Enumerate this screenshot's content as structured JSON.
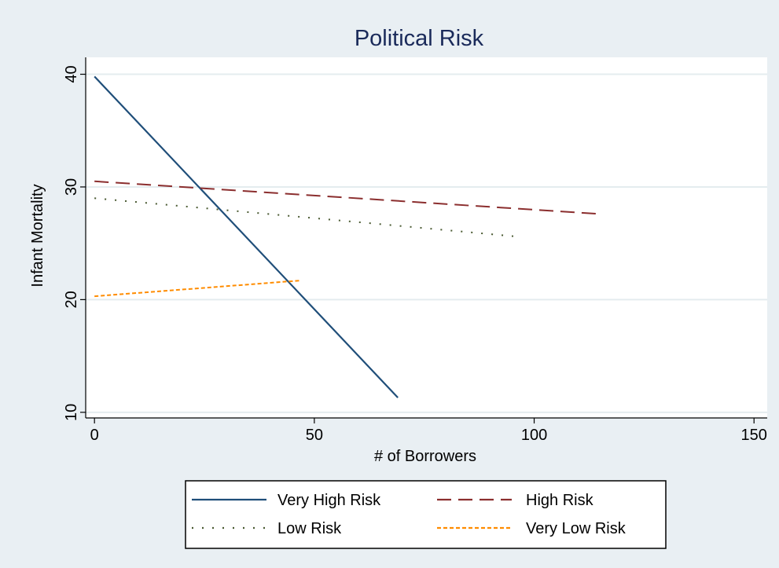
{
  "chart_data": {
    "type": "line",
    "title": "Political Risk",
    "xlabel": "# of Borrowers",
    "ylabel": "Infant Mortality",
    "xlim": [
      -2,
      153
    ],
    "ylim": [
      9.5,
      41.5
    ],
    "xticks": [
      "0",
      "50",
      "100",
      "150"
    ],
    "yticks": [
      "10",
      "20",
      "30",
      "40"
    ],
    "grid": true,
    "legend_position": "bottom",
    "series": [
      {
        "name": "Very High Risk",
        "x": [
          0,
          69
        ],
        "y": [
          39.8,
          11.3
        ],
        "color": "#1f4e79",
        "style": "solid"
      },
      {
        "name": "High Risk",
        "x": [
          0,
          115
        ],
        "y": [
          30.5,
          27.6
        ],
        "color": "#8b2e2e",
        "style": "dashed"
      },
      {
        "name": "Low Risk",
        "x": [
          0,
          96
        ],
        "y": [
          29.0,
          25.6
        ],
        "color": "#4a5a32",
        "style": "dotted"
      },
      {
        "name": "Very Low Risk",
        "x": [
          0,
          47
        ],
        "y": [
          20.3,
          21.7
        ],
        "color": "#ff8c00",
        "style": "short-dash"
      }
    ]
  }
}
